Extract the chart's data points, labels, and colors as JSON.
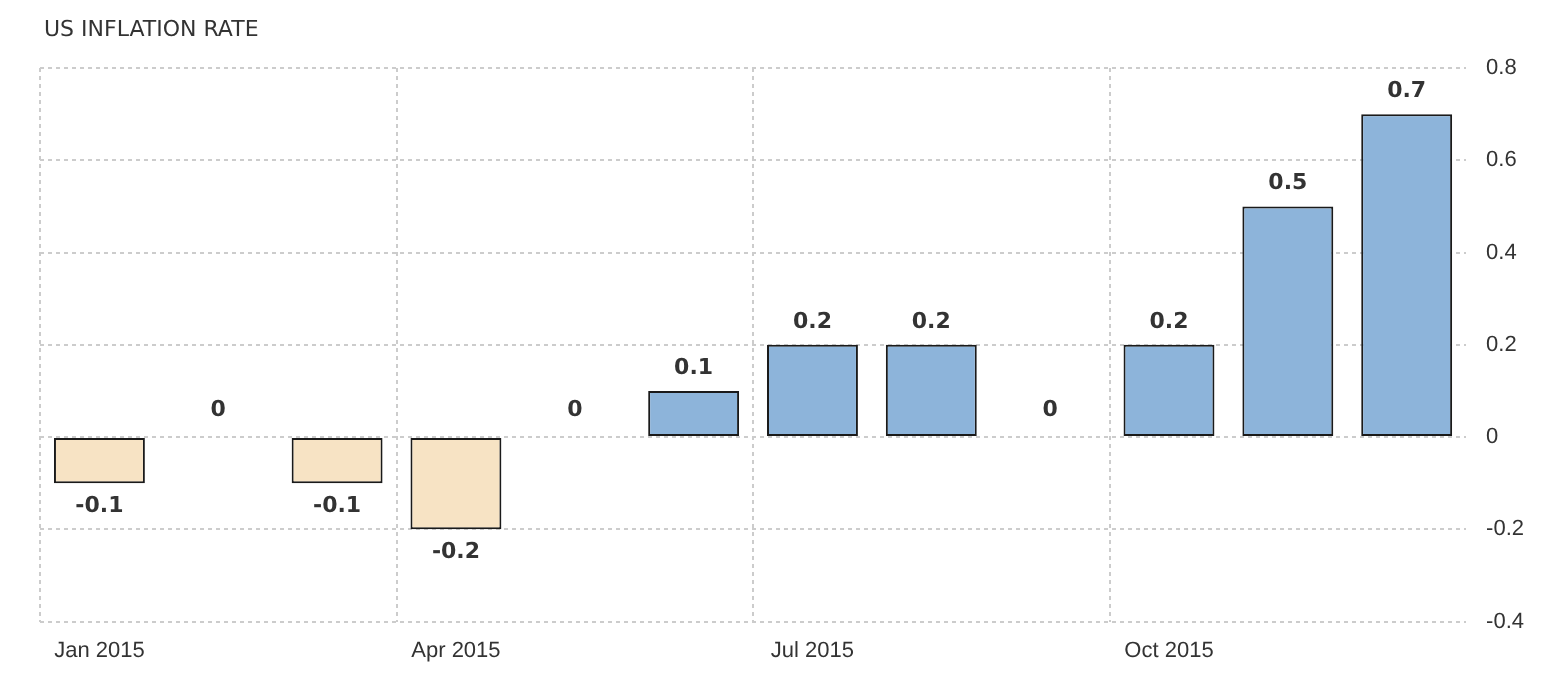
{
  "chart_data": {
    "type": "bar",
    "title": "US INFLATION RATE",
    "categories": [
      "Jan 2015",
      null,
      null,
      "Apr 2015",
      null,
      null,
      "Jul 2015",
      null,
      null,
      "Oct 2015",
      null,
      null
    ],
    "values": [
      -0.1,
      0,
      -0.1,
      -0.2,
      0,
      0.1,
      0.2,
      0.2,
      0,
      0.2,
      0.5,
      0.7
    ],
    "colors": [
      "#f7e3c4",
      "#f7e3c4",
      "#f7e3c4",
      "#f7e3c4",
      "#8db4da",
      "#8db4da",
      "#8db4da",
      "#8db4da",
      "#8db4da",
      "#8db4da",
      "#8db4da",
      "#8db4da"
    ],
    "ylim": [
      -0.4,
      0.8
    ],
    "yticks": [
      -0.4,
      -0.2,
      0,
      0.2,
      0.4,
      0.6,
      0.8
    ],
    "grid": true,
    "data_labels": true,
    "legend": false
  }
}
